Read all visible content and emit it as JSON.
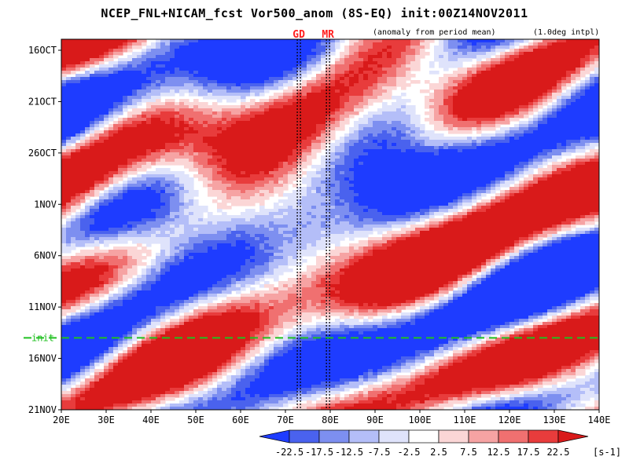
{
  "chart_data": {
    "type": "heatmap",
    "title": "NCEP_FNL+NICAM_fcst Vor500_anom (8S-EQ) init:00Z14NOV2011",
    "annotations": {
      "anomaly_note": "(anomaly from period mean)",
      "interp_note": "(1.0deg intpl)",
      "init_label": "init",
      "markers": [
        {
          "label": "GD",
          "lon": 73,
          "color": "#ff2020"
        },
        {
          "label": "MR",
          "lon": 79.5,
          "color": "#ff2020"
        }
      ]
    },
    "x_axis": {
      "range": [
        20,
        140
      ],
      "ticks": [
        "20E",
        "30E",
        "40E",
        "50E",
        "60E",
        "70E",
        "80E",
        "90E",
        "100E",
        "110E",
        "120E",
        "130E",
        "140E"
      ]
    },
    "y_axis": {
      "range_days": [
        "11OCT2011",
        "21NOV2011"
      ],
      "ticks": [
        "16OCT",
        "21OCT",
        "26OCT",
        "1NOV",
        "6NOV",
        "11NOV",
        "16NOV",
        "21NOV"
      ],
      "init_date": "14NOV"
    },
    "colorbar": {
      "unit": "[s-1]",
      "levels": [
        "-22.5",
        "-17.5",
        "-12.5",
        "-7.5",
        "-2.5",
        "2.5",
        "7.5",
        "12.5",
        "17.5",
        "22.5"
      ],
      "colors": [
        "#1e3cff",
        "#4a62ee",
        "#7d8ff0",
        "#b4bef8",
        "#dfe3fb",
        "#ffffff",
        "#fbd6d6",
        "#f6a3a3",
        "#f07070",
        "#e83c3c",
        "#d91a1a"
      ]
    },
    "colors": {
      "init_line": "#20c020",
      "marker_line": "#000000"
    }
  }
}
